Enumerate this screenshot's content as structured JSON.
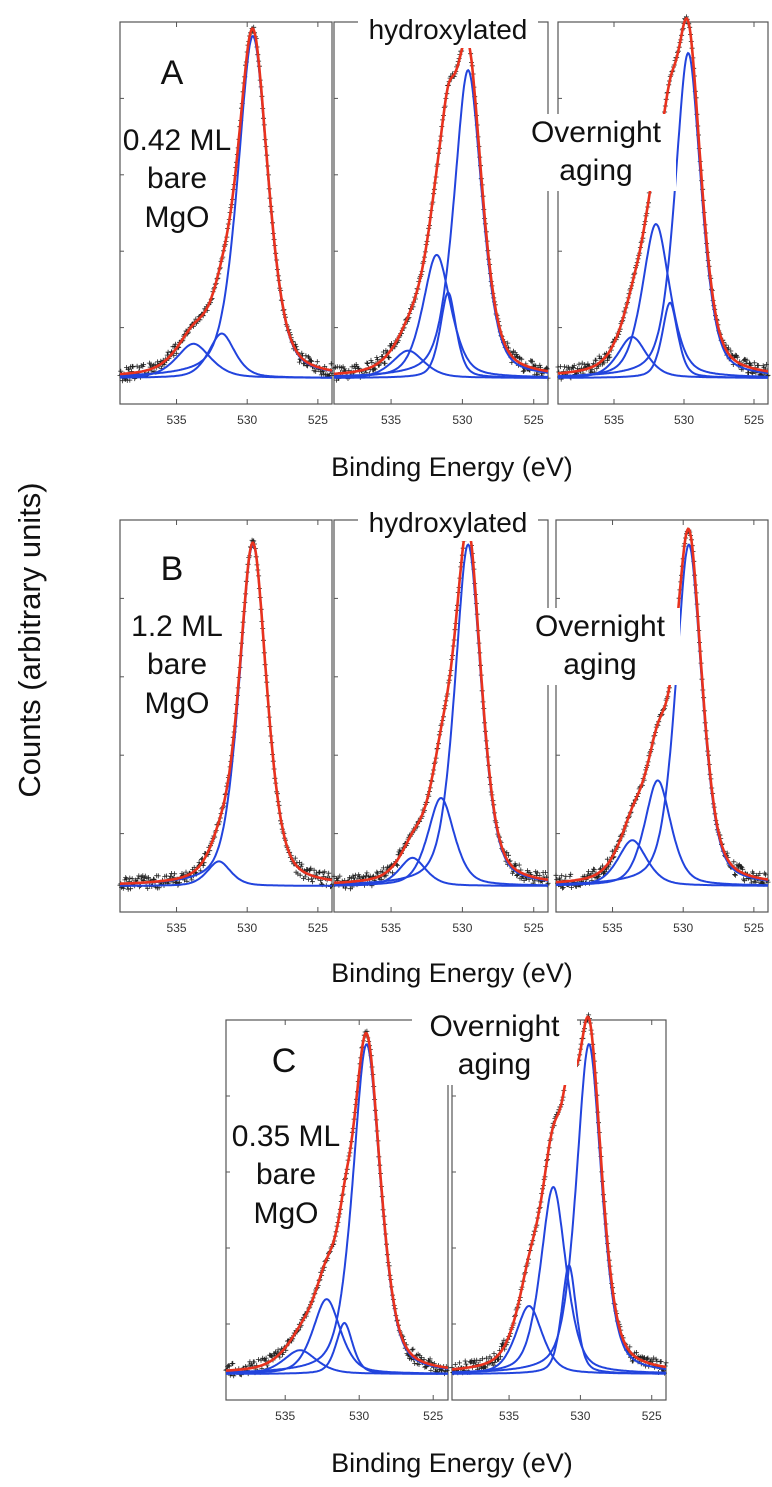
{
  "figure": {
    "ylabel": "Counts (arbitrary units)",
    "xlabel": "Binding Energy (eV)",
    "colors": {
      "data": "#222222",
      "fit": "#e8321e",
      "component": "#2244dd",
      "frame": "#555555"
    }
  },
  "panels": [
    {
      "letter": "A",
      "top_label": "hydroxylated",
      "left_label": "0.42 ML\nbare\nMgO",
      "right_label": "Overnight\naging"
    },
    {
      "letter": "B",
      "top_label": "hydroxylated",
      "left_label": "1.2 ML\nbare\nMgO",
      "right_label": "Overnight\naging"
    },
    {
      "letter": "C",
      "top_label": "",
      "left_label": "0.35 ML\nbare\nMgO",
      "right_label": "Overnight\naging"
    }
  ],
  "chart_data": [
    {
      "type": "line",
      "id": "A1",
      "condition": "0.42 ML bare MgO",
      "xlim": [
        539,
        524
      ],
      "xticks": [
        535,
        530,
        525
      ],
      "peaks": [
        {
          "center": 529.6,
          "height": 1.0,
          "width": 1.15
        },
        {
          "center": 531.8,
          "height": 0.13,
          "width": 1.0
        },
        {
          "center": 533.8,
          "height": 0.1,
          "width": 1.3
        }
      ]
    },
    {
      "type": "line",
      "id": "A2",
      "condition": "hydroxylated",
      "xlim": [
        539,
        524
      ],
      "xticks": [
        535,
        530,
        525
      ],
      "peaks": [
        {
          "center": 529.6,
          "height": 0.9,
          "width": 1.05
        },
        {
          "center": 531.8,
          "height": 0.36,
          "width": 1.05
        },
        {
          "center": 533.8,
          "height": 0.08,
          "width": 1.2
        },
        {
          "center": 531.0,
          "height": 0.25,
          "width": 0.6
        }
      ]
    },
    {
      "type": "line",
      "id": "A3",
      "condition": "Overnight aging",
      "xlim": [
        539,
        524
      ],
      "xticks": [
        535,
        530,
        525
      ],
      "peaks": [
        {
          "center": 529.7,
          "height": 0.95,
          "width": 1.0
        },
        {
          "center": 532.0,
          "height": 0.45,
          "width": 1.05
        },
        {
          "center": 533.7,
          "height": 0.12,
          "width": 1.1
        },
        {
          "center": 531.0,
          "height": 0.22,
          "width": 0.6
        }
      ]
    },
    {
      "type": "line",
      "id": "B1",
      "condition": "1.2 ML bare MgO",
      "xlim": [
        539,
        524
      ],
      "xticks": [
        535,
        530,
        525
      ],
      "peaks": [
        {
          "center": 529.6,
          "height": 0.97,
          "width": 1.05
        },
        {
          "center": 532.0,
          "height": 0.07,
          "width": 0.9
        }
      ]
    },
    {
      "type": "line",
      "id": "B2",
      "condition": "hydroxylated",
      "xlim": [
        539,
        524
      ],
      "xticks": [
        535,
        530,
        525
      ],
      "peaks": [
        {
          "center": 529.6,
          "height": 0.97,
          "width": 1.0
        },
        {
          "center": 531.5,
          "height": 0.25,
          "width": 1.0
        },
        {
          "center": 533.5,
          "height": 0.08,
          "width": 1.0
        }
      ]
    },
    {
      "type": "line",
      "id": "B3",
      "condition": "Overnight aging",
      "xlim": [
        539,
        524
      ],
      "xticks": [
        535,
        530,
        525
      ],
      "peaks": [
        {
          "center": 529.6,
          "height": 0.97,
          "width": 1.0
        },
        {
          "center": 531.8,
          "height": 0.3,
          "width": 1.0
        },
        {
          "center": 533.6,
          "height": 0.13,
          "width": 1.1
        }
      ]
    },
    {
      "type": "line",
      "id": "C1",
      "condition": "0.35 ML bare MgO",
      "xlim": [
        539,
        524
      ],
      "xticks": [
        535,
        530,
        525
      ],
      "peaks": [
        {
          "center": 529.5,
          "height": 0.97,
          "width": 1.0
        },
        {
          "center": 532.2,
          "height": 0.22,
          "width": 1.0
        },
        {
          "center": 534.0,
          "height": 0.07,
          "width": 1.2
        },
        {
          "center": 531.0,
          "height": 0.15,
          "width": 0.6
        }
      ]
    },
    {
      "type": "line",
      "id": "C2",
      "condition": "Overnight aging",
      "xlim": [
        539,
        524
      ],
      "xticks": [
        535,
        530,
        525
      ],
      "peaks": [
        {
          "center": 529.4,
          "height": 0.97,
          "width": 0.95
        },
        {
          "center": 531.9,
          "height": 0.55,
          "width": 0.95
        },
        {
          "center": 533.6,
          "height": 0.2,
          "width": 1.0
        },
        {
          "center": 530.8,
          "height": 0.32,
          "width": 0.55
        }
      ]
    }
  ]
}
